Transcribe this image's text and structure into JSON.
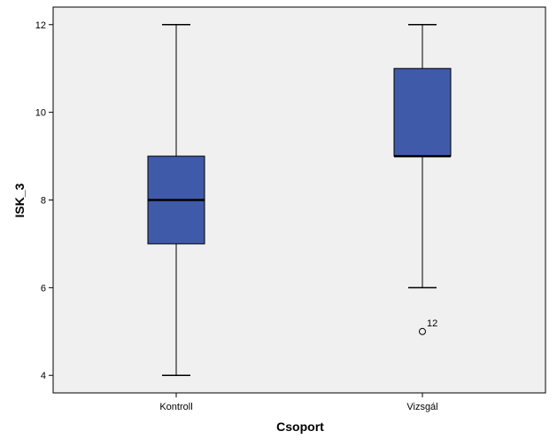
{
  "chart_data": {
    "type": "boxplot",
    "xlabel": "Csoport",
    "ylabel": "ISK_3",
    "ylim": [
      3.6,
      12.4
    ],
    "yticks": [
      4,
      6,
      8,
      10,
      12
    ],
    "ytick_labels": [
      "4",
      "6",
      "8",
      "10",
      "12"
    ],
    "grid": false,
    "box_color": "#3f5aa8",
    "plot_background": "#f0f0f0",
    "categories": [
      "Kontroll",
      "Vizsgál"
    ],
    "boxes": [
      {
        "category": "Kontroll",
        "min": 4,
        "q1": 7,
        "median": 8,
        "q3": 9,
        "max": 12,
        "outliers": []
      },
      {
        "category": "Vizsgál",
        "min": 6,
        "q1": 9,
        "median": 9,
        "q3": 11,
        "max": 12,
        "outliers": [
          {
            "value": 5,
            "label": "12"
          }
        ]
      }
    ]
  }
}
